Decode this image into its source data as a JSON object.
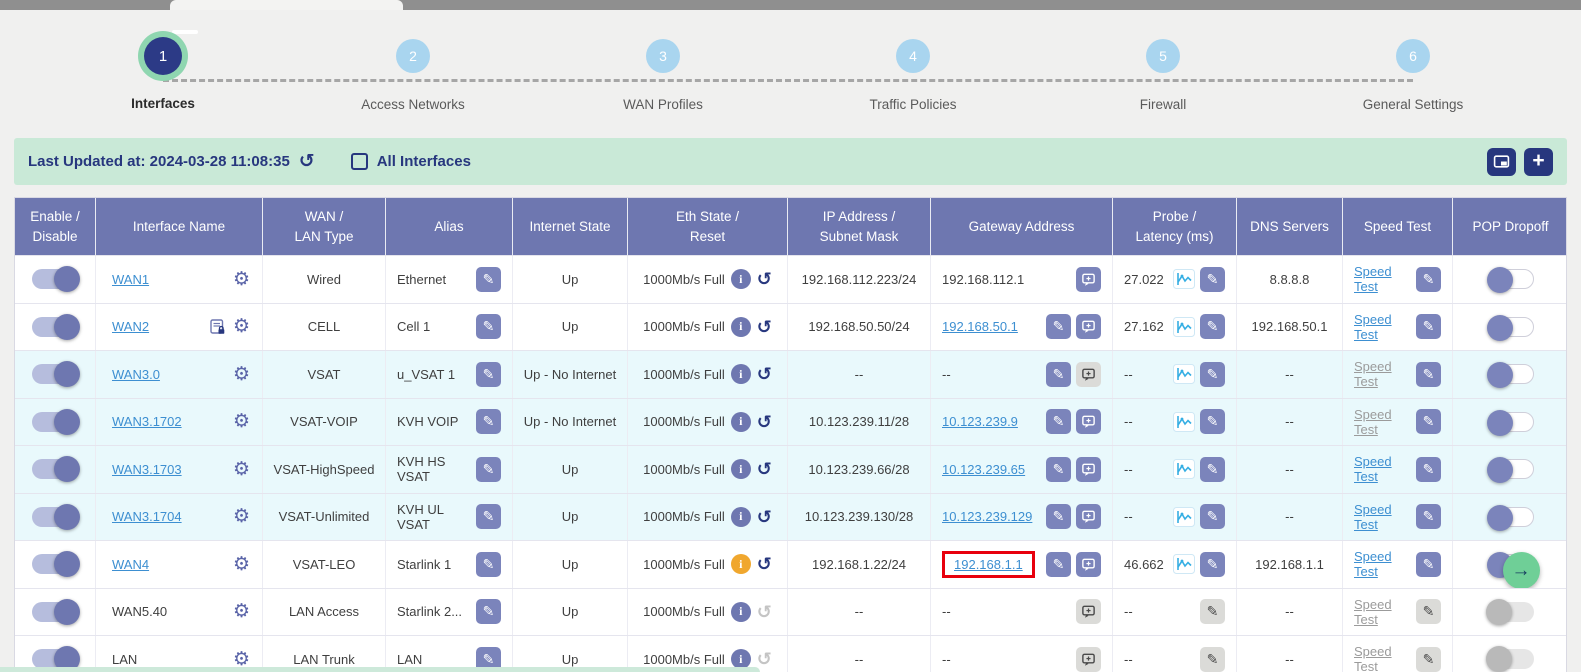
{
  "colors": {
    "accent_navy": "#27377e",
    "header_blue": "#6e77b0",
    "button_purple": "#7b84bb",
    "link_blue": "#3d8fd1",
    "bar_green": "#c9e9d7",
    "row_tint": "#e9f9fc",
    "warning_orange": "#f0a72e",
    "highlight_red": "#e8000d",
    "success_green": "#6fcf97"
  },
  "stepper": {
    "steps": [
      {
        "num": "1",
        "label": "Interfaces",
        "active": true
      },
      {
        "num": "2",
        "label": "Access Networks",
        "active": false
      },
      {
        "num": "3",
        "label": "WAN Profiles",
        "active": false
      },
      {
        "num": "4",
        "label": "Traffic Policies",
        "active": false
      },
      {
        "num": "5",
        "label": "Firewall",
        "active": false
      },
      {
        "num": "6",
        "label": "General Settings",
        "active": false
      }
    ]
  },
  "info_bar": {
    "last_updated": "Last Updated at: 2024-03-28 11:08:35",
    "refresh_icon": "↺",
    "all_interfaces_label": "All Interfaces",
    "checkbox_checked": false,
    "plus_label": "+"
  },
  "table": {
    "columns": [
      "Enable /\nDisable",
      "Interface Name",
      "WAN /\nLAN Type",
      "Alias",
      "Internet State",
      "Eth State /\nReset",
      "IP Address /\nSubnet Mask",
      "Gateway Address",
      "Probe /\nLatency (ms)",
      "DNS Servers",
      "Speed Test",
      "POP Dropoff"
    ],
    "speed_test_label": "Speed Test",
    "rows": [
      {
        "enabled": true,
        "name": "WAN1",
        "name_link": true,
        "sim_icon": false,
        "type": "Wired",
        "alias": "Ethernet",
        "internet_state": "Up",
        "eth_state": "1000Mb/s Full",
        "info_color": "blue",
        "reset_disabled": false,
        "ip": "192.168.112.223/24",
        "gateway": "192.168.112.1",
        "gateway_link": false,
        "gateway_edit": false,
        "gateway_monitor": true,
        "gateway_monitor_disabled": false,
        "gateway_highlight": false,
        "probe": "27.022",
        "probe_chart": true,
        "probe_edit_disabled": false,
        "dns": "8.8.8.8",
        "speed_active": true,
        "speed_edit_disabled": false,
        "pop_state": "off",
        "pop_arrow": false,
        "row_tint": false
      },
      {
        "enabled": true,
        "name": "WAN2",
        "name_link": true,
        "sim_icon": true,
        "type": "CELL",
        "alias": "Cell 1",
        "internet_state": "Up",
        "eth_state": "1000Mb/s Full",
        "info_color": "blue",
        "reset_disabled": false,
        "ip": "192.168.50.50/24",
        "gateway": "192.168.50.1",
        "gateway_link": true,
        "gateway_edit": true,
        "gateway_monitor": true,
        "gateway_monitor_disabled": false,
        "gateway_highlight": false,
        "probe": "27.162",
        "probe_chart": true,
        "probe_edit_disabled": false,
        "dns": "192.168.50.1",
        "speed_active": true,
        "speed_edit_disabled": false,
        "pop_state": "off",
        "pop_arrow": false,
        "row_tint": false
      },
      {
        "enabled": true,
        "name": "WAN3.0",
        "name_link": true,
        "sim_icon": false,
        "type": "VSAT",
        "alias": "u_VSAT 1",
        "internet_state": "Up - No Internet",
        "eth_state": "1000Mb/s Full",
        "info_color": "blue",
        "reset_disabled": false,
        "ip": "--",
        "gateway": "--",
        "gateway_link": false,
        "gateway_edit": true,
        "gateway_monitor": true,
        "gateway_monitor_disabled": true,
        "gateway_highlight": false,
        "probe": "--",
        "probe_chart": true,
        "probe_edit_disabled": false,
        "dns": "--",
        "speed_active": false,
        "speed_edit_disabled": false,
        "pop_state": "off",
        "pop_arrow": false,
        "row_tint": true
      },
      {
        "enabled": true,
        "name": "WAN3.1702",
        "name_link": true,
        "sim_icon": false,
        "type": "VSAT-VOIP",
        "alias": "KVH VOIP",
        "internet_state": "Up - No Internet",
        "eth_state": "1000Mb/s Full",
        "info_color": "blue",
        "reset_disabled": false,
        "ip": "10.123.239.11/28",
        "gateway": "10.123.239.9",
        "gateway_link": true,
        "gateway_edit": true,
        "gateway_monitor": true,
        "gateway_monitor_disabled": false,
        "gateway_highlight": false,
        "probe": "--",
        "probe_chart": true,
        "probe_edit_disabled": false,
        "dns": "--",
        "speed_active": false,
        "speed_edit_disabled": false,
        "pop_state": "off",
        "pop_arrow": false,
        "row_tint": true
      },
      {
        "enabled": true,
        "name": "WAN3.1703",
        "name_link": true,
        "sim_icon": false,
        "type": "VSAT-HighSpeed",
        "alias": "KVH HS VSAT",
        "internet_state": "Up",
        "eth_state": "1000Mb/s Full",
        "info_color": "blue",
        "reset_disabled": false,
        "ip": "10.123.239.66/28",
        "gateway": "10.123.239.65",
        "gateway_link": true,
        "gateway_edit": true,
        "gateway_monitor": true,
        "gateway_monitor_disabled": false,
        "gateway_highlight": false,
        "probe": "--",
        "probe_chart": true,
        "probe_edit_disabled": false,
        "dns": "--",
        "speed_active": true,
        "speed_edit_disabled": false,
        "pop_state": "off",
        "pop_arrow": false,
        "row_tint": true
      },
      {
        "enabled": true,
        "name": "WAN3.1704",
        "name_link": true,
        "sim_icon": false,
        "type": "VSAT-Unlimited",
        "alias": "KVH UL VSAT",
        "internet_state": "Up",
        "eth_state": "1000Mb/s Full",
        "info_color": "blue",
        "reset_disabled": false,
        "ip": "10.123.239.130/28",
        "gateway": "10.123.239.129",
        "gateway_link": true,
        "gateway_edit": true,
        "gateway_monitor": true,
        "gateway_monitor_disabled": false,
        "gateway_highlight": false,
        "probe": "--",
        "probe_chart": true,
        "probe_edit_disabled": false,
        "dns": "--",
        "speed_active": true,
        "speed_edit_disabled": false,
        "pop_state": "off",
        "pop_arrow": false,
        "row_tint": true
      },
      {
        "enabled": true,
        "name": "WAN4",
        "name_link": true,
        "sim_icon": false,
        "type": "VSAT-LEO",
        "alias": "Starlink 1",
        "internet_state": "Up",
        "eth_state": "1000Mb/s Full",
        "info_color": "orange",
        "reset_disabled": false,
        "ip": "192.168.1.22/24",
        "gateway": "192.168.1.1",
        "gateway_link": true,
        "gateway_edit": true,
        "gateway_monitor": true,
        "gateway_monitor_disabled": false,
        "gateway_highlight": true,
        "probe": "46.662",
        "probe_chart": true,
        "probe_edit_disabled": false,
        "dns": "192.168.1.1",
        "speed_active": true,
        "speed_edit_disabled": false,
        "pop_state": "off",
        "pop_arrow": true,
        "row_tint": false
      },
      {
        "enabled": true,
        "name": "WAN5.40",
        "name_link": false,
        "sim_icon": false,
        "type": "LAN Access",
        "alias": "Starlink 2...",
        "internet_state": "Up",
        "eth_state": "1000Mb/s Full",
        "info_color": "blue",
        "reset_disabled": true,
        "ip": "--",
        "gateway": "--",
        "gateway_link": false,
        "gateway_edit": false,
        "gateway_monitor": true,
        "gateway_monitor_disabled": true,
        "gateway_highlight": false,
        "probe": "--",
        "probe_chart": false,
        "probe_edit_disabled": true,
        "dns": "--",
        "speed_active": false,
        "speed_edit_disabled": true,
        "pop_state": "disabled",
        "pop_arrow": false,
        "row_tint": false
      },
      {
        "enabled": true,
        "name": "LAN",
        "name_link": false,
        "sim_icon": false,
        "type": "LAN Trunk",
        "alias": "LAN",
        "internet_state": "Up",
        "eth_state": "1000Mb/s Full",
        "info_color": "blue",
        "reset_disabled": true,
        "ip": "--",
        "gateway": "--",
        "gateway_link": false,
        "gateway_edit": false,
        "gateway_monitor": true,
        "gateway_monitor_disabled": true,
        "gateway_highlight": false,
        "probe": "--",
        "probe_chart": false,
        "probe_edit_disabled": true,
        "dns": "--",
        "speed_active": false,
        "speed_edit_disabled": true,
        "pop_state": "disabled",
        "pop_arrow": false,
        "row_tint": false
      }
    ]
  }
}
